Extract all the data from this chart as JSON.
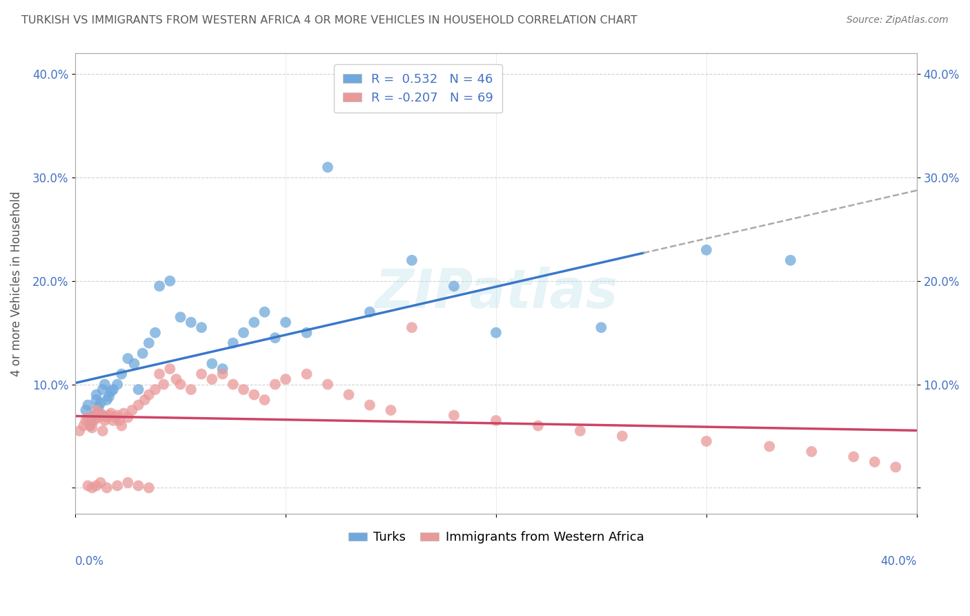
{
  "title": "TURKISH VS IMMIGRANTS FROM WESTERN AFRICA 4 OR MORE VEHICLES IN HOUSEHOLD CORRELATION CHART",
  "source": "Source: ZipAtlas.com",
  "ylabel": "4 or more Vehicles in Household",
  "watermark": "ZIPatlas",
  "legend_turks_R": "0.532",
  "legend_turks_N": "46",
  "legend_immigrants_R": "-0.207",
  "legend_immigrants_N": "69",
  "turks_color": "#6fa8dc",
  "immigrants_color": "#ea9999",
  "turks_line_color": "#3a78c9",
  "immigrants_line_color": "#cc4466",
  "dashed_line_color": "#aaaaaa",
  "background_color": "#ffffff",
  "grid_color": "#cccccc",
  "title_color": "#595959",
  "axis_label_color": "#4472c4",
  "xlim": [
    0,
    0.4
  ],
  "ylim": [
    -0.025,
    0.42
  ],
  "turks_x": [
    0.005,
    0.006,
    0.007,
    0.008,
    0.009,
    0.01,
    0.01,
    0.011,
    0.012,
    0.013,
    0.013,
    0.014,
    0.015,
    0.016,
    0.017,
    0.018,
    0.02,
    0.022,
    0.025,
    0.028,
    0.03,
    0.032,
    0.035,
    0.038,
    0.04,
    0.045,
    0.05,
    0.055,
    0.06,
    0.065,
    0.07,
    0.075,
    0.08,
    0.085,
    0.09,
    0.095,
    0.1,
    0.11,
    0.12,
    0.14,
    0.16,
    0.18,
    0.2,
    0.25,
    0.3,
    0.34
  ],
  "turks_y": [
    0.075,
    0.08,
    0.06,
    0.065,
    0.07,
    0.085,
    0.09,
    0.078,
    0.082,
    0.07,
    0.095,
    0.1,
    0.085,
    0.088,
    0.093,
    0.095,
    0.1,
    0.11,
    0.125,
    0.12,
    0.095,
    0.13,
    0.14,
    0.15,
    0.195,
    0.2,
    0.165,
    0.16,
    0.155,
    0.12,
    0.115,
    0.14,
    0.15,
    0.16,
    0.17,
    0.145,
    0.16,
    0.15,
    0.31,
    0.17,
    0.22,
    0.195,
    0.15,
    0.155,
    0.23,
    0.22
  ],
  "imm_x": [
    0.002,
    0.004,
    0.005,
    0.006,
    0.007,
    0.008,
    0.009,
    0.01,
    0.01,
    0.011,
    0.012,
    0.013,
    0.014,
    0.015,
    0.016,
    0.017,
    0.018,
    0.019,
    0.02,
    0.021,
    0.022,
    0.023,
    0.025,
    0.027,
    0.03,
    0.033,
    0.035,
    0.038,
    0.04,
    0.042,
    0.045,
    0.048,
    0.05,
    0.055,
    0.06,
    0.065,
    0.07,
    0.075,
    0.08,
    0.085,
    0.09,
    0.095,
    0.1,
    0.11,
    0.12,
    0.13,
    0.14,
    0.15,
    0.16,
    0.18,
    0.2,
    0.22,
    0.24,
    0.26,
    0.3,
    0.33,
    0.35,
    0.37,
    0.38,
    0.39,
    0.006,
    0.008,
    0.01,
    0.012,
    0.015,
    0.02,
    0.025,
    0.03,
    0.035
  ],
  "imm_y": [
    0.055,
    0.06,
    0.065,
    0.068,
    0.06,
    0.058,
    0.065,
    0.07,
    0.075,
    0.068,
    0.072,
    0.055,
    0.065,
    0.068,
    0.07,
    0.072,
    0.065,
    0.068,
    0.07,
    0.065,
    0.06,
    0.072,
    0.068,
    0.075,
    0.08,
    0.085,
    0.09,
    0.095,
    0.11,
    0.1,
    0.115,
    0.105,
    0.1,
    0.095,
    0.11,
    0.105,
    0.11,
    0.1,
    0.095,
    0.09,
    0.085,
    0.1,
    0.105,
    0.11,
    0.1,
    0.09,
    0.08,
    0.075,
    0.155,
    0.07,
    0.065,
    0.06,
    0.055,
    0.05,
    0.045,
    0.04,
    0.035,
    0.03,
    0.025,
    0.02,
    0.002,
    0.0,
    0.002,
    0.005,
    0.0,
    0.002,
    0.005,
    0.002,
    0.0
  ]
}
